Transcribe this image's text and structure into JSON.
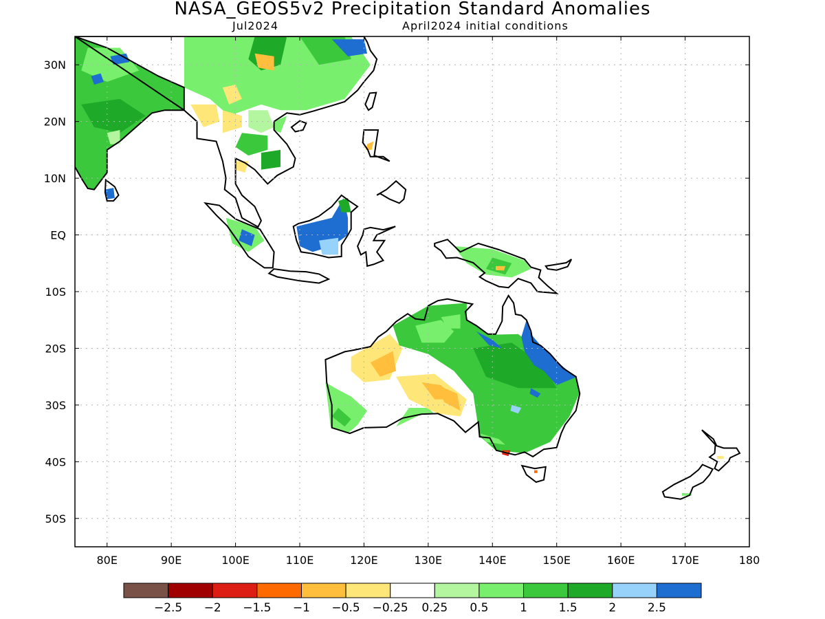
{
  "header": {
    "title": "NASA_GEOS5v2 Precipitation Standard Anomalies",
    "valid_month": "Jul2024",
    "init": "April2024 initial conditions"
  },
  "map": {
    "lon_range": [
      75,
      180
    ],
    "lat_range": [
      -55,
      35
    ],
    "lon_ticks": [
      "80E",
      "90E",
      "100E",
      "110E",
      "120E",
      "130E",
      "140E",
      "150E",
      "160E",
      "170E",
      "180"
    ],
    "lat_ticks": [
      "30N",
      "20N",
      "10N",
      "EQ",
      "10S",
      "20S",
      "30S",
      "40S",
      "50S"
    ],
    "grid_lines": "dotted"
  },
  "colorbar": {
    "colors": [
      "#7a5146",
      "#a00000",
      "#dc1e14",
      "#ff6a00",
      "#ffbe3c",
      "#ffe678",
      "#ffffff",
      "#b4f5a0",
      "#78f06e",
      "#3cc83c",
      "#1eaa28",
      "#96d2fa",
      "#1e6ed2"
    ],
    "labels": [
      "−2.5",
      "−2",
      "−1.5",
      "−1",
      "−0.5",
      "−0.25",
      "0.25",
      "0.5",
      "1",
      "1.5",
      "2",
      "2.5"
    ]
  },
  "palette": {
    "land_line": "#000000",
    "grid": "#b4b4b4"
  }
}
